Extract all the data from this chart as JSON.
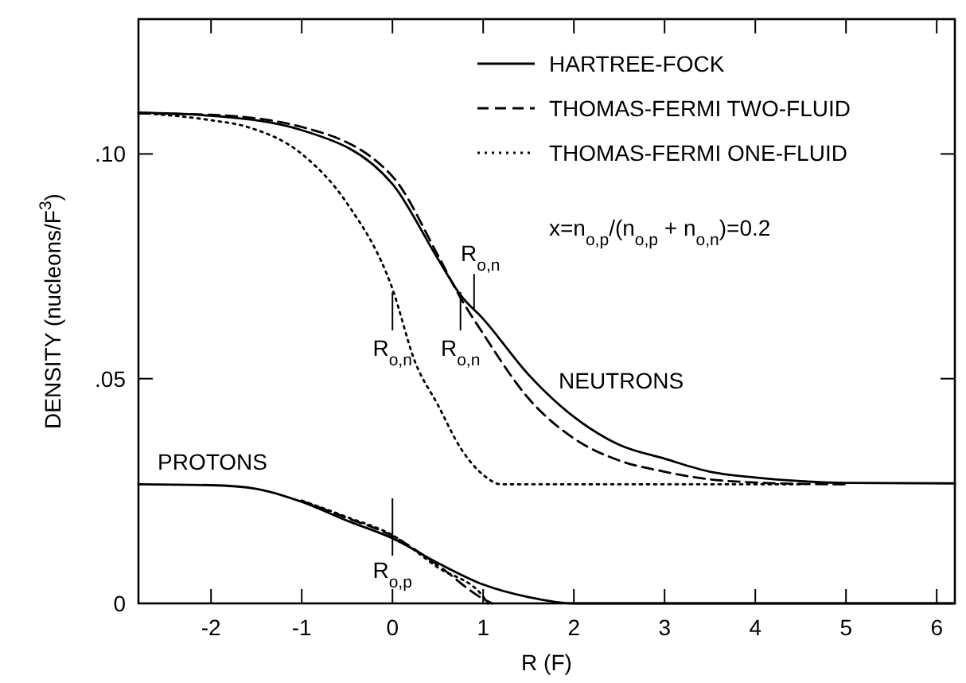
{
  "chart_data": {
    "type": "line",
    "xlabel": "R (F)",
    "ylabel": "DENSITY (nucleons/F$^{3}$)",
    "xlim": [
      -2.8,
      6.2
    ],
    "xticks": [
      -2,
      -1,
      0,
      1,
      2,
      3,
      4,
      5,
      6
    ],
    "ylim": [
      0,
      0.13
    ],
    "yticks": [
      {
        "value": 0,
        "label": "0"
      },
      {
        "value": 0.05,
        "label": ".05"
      },
      {
        "value": 0.1,
        "label": ".10"
      }
    ],
    "grid": false,
    "legend": "top right",
    "marker": "none",
    "series": [
      {
        "name": "HARTREE-FOCK",
        "color": "#000000",
        "line_style": "solid",
        "x": [
          -2.8,
          -2,
          -1,
          0,
          0.5,
          0.75,
          1,
          1.5,
          2,
          2.5,
          3,
          3.5,
          4,
          4.5,
          5,
          6.2
        ],
        "values": [
          0.1092,
          0.1085,
          0.1053,
          0.0933,
          0.0767,
          0.0686,
          0.0633,
          0.0509,
          0.0415,
          0.0353,
          0.0322,
          0.0293,
          0.028,
          0.0272,
          0.0268,
          0.0267
        ]
      },
      {
        "name": "THOMAS-FERMI TWO-FLUID",
        "color": "#000000",
        "line_style": "dashed",
        "x": [
          -2.8,
          -2,
          -1,
          0,
          0.5,
          0.75,
          1,
          1.5,
          2,
          2.5,
          3,
          3.5,
          4,
          4.5,
          5
        ],
        "values": [
          0.109,
          0.1087,
          0.106,
          0.095,
          0.0775,
          0.068,
          0.06,
          0.0456,
          0.0367,
          0.0318,
          0.0293,
          0.0276,
          0.0269,
          0.0266,
          0.0265
        ]
      },
      {
        "name": "THOMAS-FERMI ONE-FLUID",
        "color": "#000000",
        "line_style": "dotted",
        "x": [
          -2.7,
          -2,
          -1.6,
          -1,
          -0.5,
          0,
          0.25,
          0.5,
          0.75,
          1,
          1.2,
          4.5
        ],
        "values": [
          0.109,
          0.1075,
          0.106,
          0.1,
          0.089,
          0.07,
          0.0537,
          0.0442,
          0.0346,
          0.0286,
          0.0265,
          0.0265
        ]
      },
      {
        "color": "#000000",
        "line_style": "solid",
        "x": [
          -2.8,
          -2,
          -1.5,
          -1,
          -0.5,
          0,
          0.5,
          1,
          1.5,
          2,
          6.2
        ],
        "values": [
          0.0265,
          0.0263,
          0.0255,
          0.0226,
          0.0184,
          0.0145,
          0.009,
          0.0042,
          0.0014,
          0,
          0
        ]
      },
      {
        "color": "#000000",
        "line_style": "dashed",
        "x": [
          -1,
          -0.5,
          0,
          0.5,
          1,
          1.1
        ],
        "values": [
          0.0228,
          0.019,
          0.015,
          0.0085,
          0.001,
          0
        ]
      },
      {
        "color": "#000000",
        "line_style": "dotted",
        "x": [
          -1,
          -0.5,
          0,
          0.5,
          1,
          1.05
        ],
        "values": [
          0.0229,
          0.0192,
          0.0152,
          0.008,
          0.0015,
          0
        ]
      }
    ],
    "annotations": [
      {
        "text": "R$_{o,n}$",
        "x": 0,
        "y": 0.065
      },
      {
        "text": "R$_{o,n}$",
        "x": 0.75,
        "y": 0.065
      },
      {
        "text": "R$_{o,n}$",
        "x": 0.9,
        "y": 0.0655
      },
      {
        "text": "R$_{o,p}$",
        "x": 0,
        "y": 0.017
      },
      "NEUTRONS",
      "PROTONS",
      "x=n$_{o,p}$/(n$_{o,p}$ + n$_{o,n}$)=0.2"
    ]
  }
}
